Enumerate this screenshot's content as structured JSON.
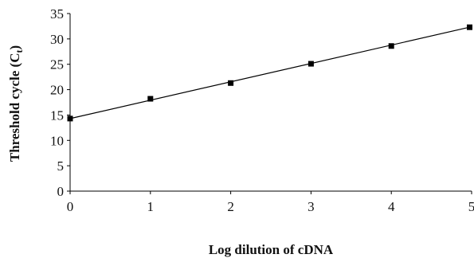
{
  "chart_data": {
    "type": "line",
    "title": "",
    "xlabel": "Log dilution of cDNA",
    "ylabel_main": "Threshold cycle (C",
    "ylabel_sub": "t",
    "ylabel_close": ")",
    "x": [
      0,
      1,
      2,
      3,
      4,
      5
    ],
    "series": [
      {
        "values": [
          14.3,
          18.2,
          21.3,
          25.1,
          28.6,
          32.3
        ]
      }
    ],
    "trendline": {
      "x": [
        0,
        5
      ],
      "y": [
        14.3,
        32.4
      ]
    },
    "xlim": [
      0,
      5
    ],
    "ylim": [
      0,
      35
    ],
    "xticks": [
      0,
      1,
      2,
      3,
      4,
      5
    ],
    "yticks": [
      0,
      5,
      10,
      15,
      20,
      25,
      30,
      35
    ],
    "grid": false,
    "legend": "none",
    "colors": {
      "line": "#000000",
      "marker": "#000000",
      "axis": "#000000"
    }
  }
}
